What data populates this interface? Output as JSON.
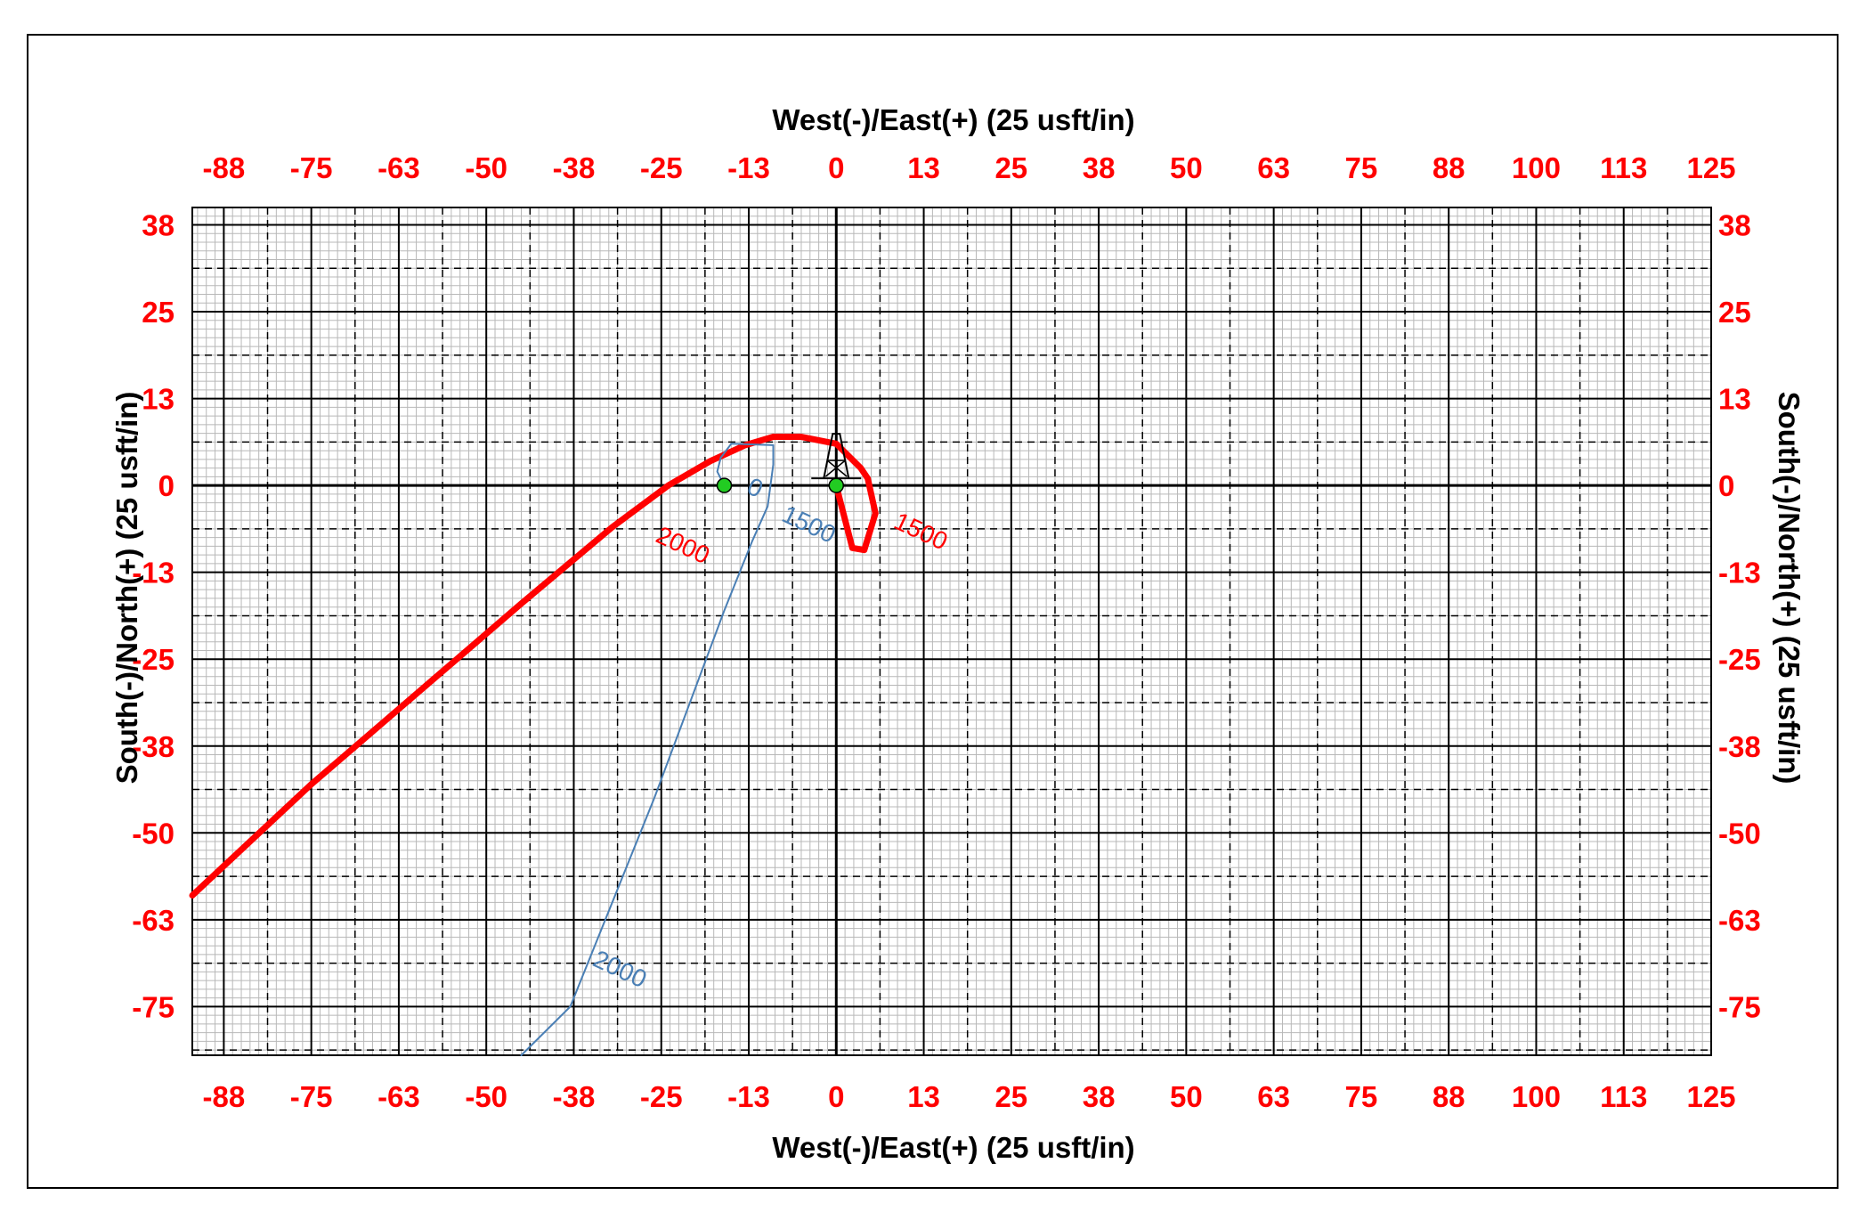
{
  "chart_data": {
    "type": "line",
    "title": "",
    "xlabel_top": "West(-)/East(+) (25 usft/in)",
    "xlabel_bottom": "West(-)/East(+) (25 usft/in)",
    "ylabel_left": "South(-)/North(+) (25 usft/in)",
    "ylabel_right": "South(-)/North(+) (25 usft/in)",
    "xlim": [
      -92,
      125
    ],
    "ylim": [
      -82,
      40
    ],
    "x_ticks": [
      {
        "value": -87.5,
        "label": "-88"
      },
      {
        "value": -75,
        "label": "-75"
      },
      {
        "value": -62.5,
        "label": "-63"
      },
      {
        "value": -50,
        "label": "-50"
      },
      {
        "value": -37.5,
        "label": "-38"
      },
      {
        "value": -25,
        "label": "-25"
      },
      {
        "value": -12.5,
        "label": "-13"
      },
      {
        "value": 0,
        "label": "0"
      },
      {
        "value": 12.5,
        "label": "13"
      },
      {
        "value": 25,
        "label": "25"
      },
      {
        "value": 37.5,
        "label": "38"
      },
      {
        "value": 50,
        "label": "50"
      },
      {
        "value": 62.5,
        "label": "63"
      },
      {
        "value": 75,
        "label": "75"
      },
      {
        "value": 87.5,
        "label": "88"
      },
      {
        "value": 100,
        "label": "100"
      },
      {
        "value": 112.5,
        "label": "113"
      },
      {
        "value": 125,
        "label": "125"
      }
    ],
    "y_ticks": [
      {
        "value": 37.5,
        "label": "38"
      },
      {
        "value": 25,
        "label": "25"
      },
      {
        "value": 12.5,
        "label": "13"
      },
      {
        "value": 0,
        "label": "0"
      },
      {
        "value": -12.5,
        "label": "-13"
      },
      {
        "value": -25,
        "label": "-25"
      },
      {
        "value": -37.5,
        "label": "-38"
      },
      {
        "value": -50,
        "label": "-50"
      },
      {
        "value": -62.5,
        "label": "-63"
      },
      {
        "value": -75,
        "label": "-75"
      }
    ],
    "grid": true,
    "series": [
      {
        "color": "#ff0000",
        "x": [
          0,
          0.5,
          2.3,
          4,
          5.6,
          4.5,
          3.5,
          0,
          -5,
          -9,
          -13,
          -18,
          -24,
          -32,
          -45,
          -60,
          -75,
          -92
        ],
        "y": [
          0,
          -2,
          -9,
          -9.3,
          -4,
          1,
          2.5,
          6,
          7,
          7,
          5.8,
          3.5,
          0,
          -6,
          -17,
          -30,
          -43,
          -59
        ],
        "labels": [
          {
            "text": "1500",
            "x": 8,
            "y": -6
          },
          {
            "text": "2000",
            "x": -26,
            "y": -8
          }
        ]
      },
      {
        "color": "#4a7fb5",
        "x": [
          -16,
          -17,
          -16.5,
          -15,
          -9,
          -9,
          -9.8,
          -12,
          -16,
          -26,
          -38,
          -45
        ],
        "y": [
          0,
          2,
          4,
          6,
          5.8,
          3,
          -3,
          -8,
          -18,
          -45,
          -75,
          -82
        ],
        "labels": [
          {
            "text": "0",
            "x": -13,
            "y": -1
          },
          {
            "text": "1500",
            "x": -8,
            "y": -5
          },
          {
            "text": "2000",
            "x": -35,
            "y": -69
          }
        ]
      }
    ],
    "points": [
      {
        "x": -16,
        "y": 0,
        "color": "#22cc22"
      },
      {
        "x": 0,
        "y": 0,
        "color": "#22cc22"
      }
    ]
  }
}
